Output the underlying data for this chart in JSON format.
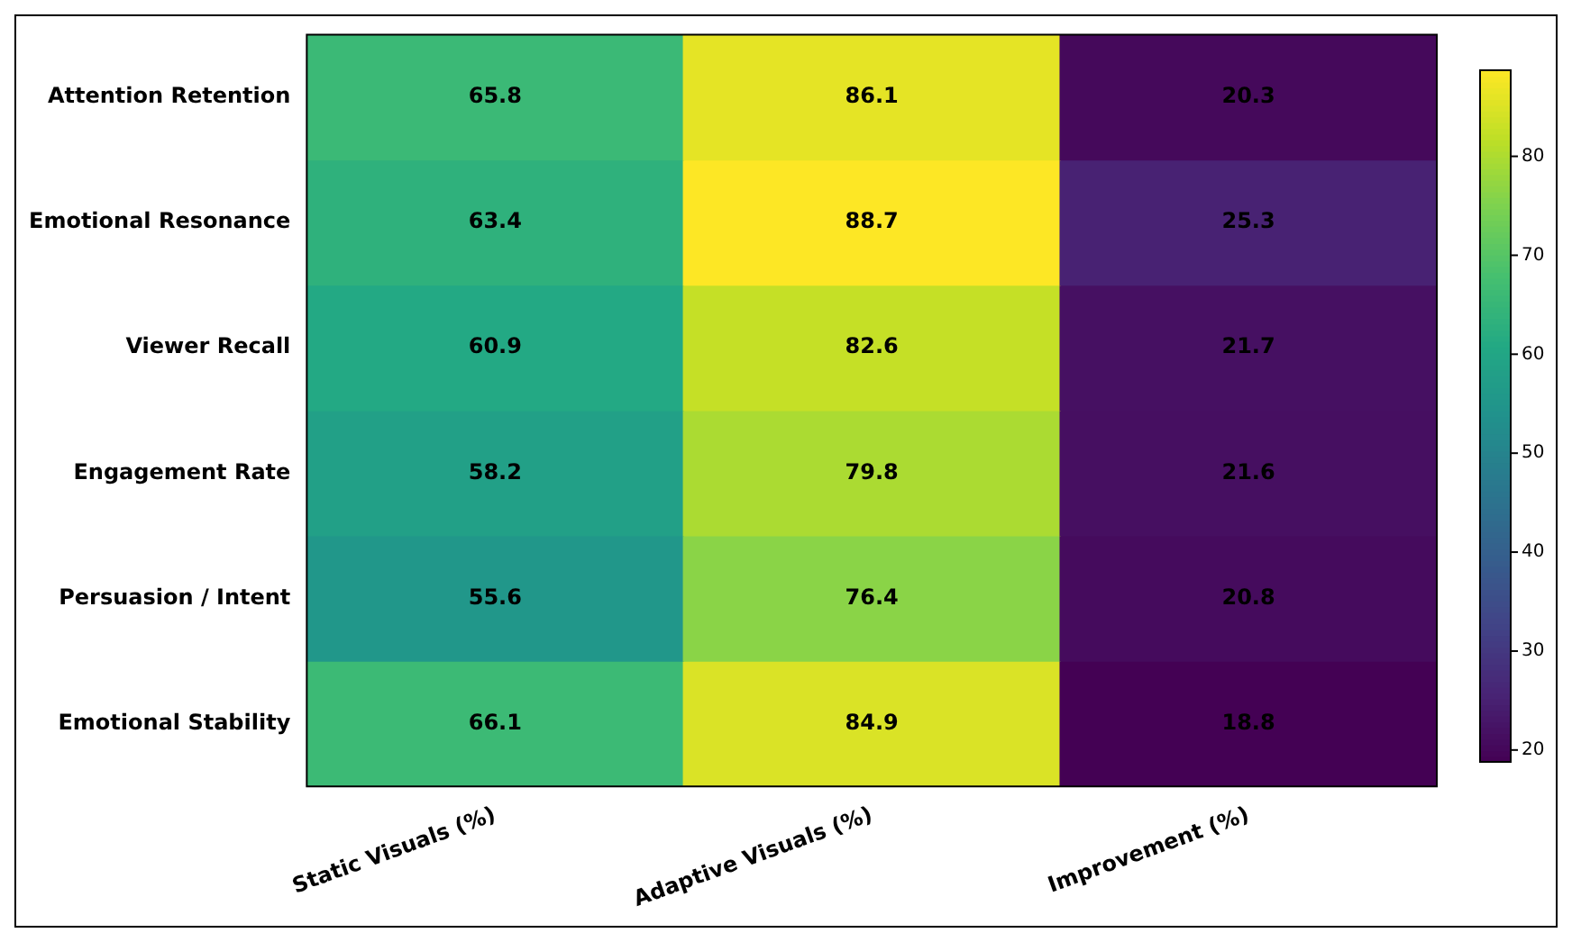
{
  "chart_data": {
    "type": "heatmap",
    "categories": [
      "Static Visuals (%)",
      "Adaptive Visuals (%)",
      "Improvement (%)"
    ],
    "y_categories": [
      "Attention Retention",
      "Emotional Resonance",
      "Viewer Recall",
      "Engagement Rate",
      "Persuasion / Intent",
      "Emotional Stability"
    ],
    "cells": [
      [
        65.8,
        86.1,
        20.3
      ],
      [
        63.4,
        88.7,
        25.3
      ],
      [
        60.9,
        82.6,
        21.7
      ],
      [
        58.2,
        79.8,
        21.6
      ],
      [
        55.6,
        76.4,
        20.8
      ],
      [
        66.1,
        84.9,
        18.8
      ]
    ],
    "data_labels": true,
    "clim": [
      18.8,
      88.7
    ],
    "cticks": [
      20,
      30,
      40,
      50,
      60,
      70,
      80
    ]
  }
}
